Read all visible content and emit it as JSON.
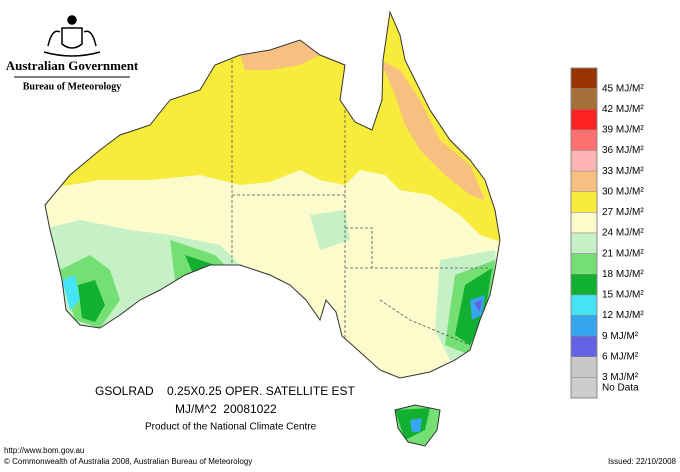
{
  "header": {
    "government": "Australian Government",
    "bureau": "Bureau of Meteorology"
  },
  "legend": [
    {
      "label": "45 MJ/M²",
      "color": "#993300"
    },
    {
      "label": "42 MJ/M²",
      "color": "#a6703a"
    },
    {
      "label": "39 MJ/M²",
      "color": "#ff2222"
    },
    {
      "label": "36 MJ/M²",
      "color": "#ff7070"
    },
    {
      "label": "33 MJ/M²",
      "color": "#ffb4b4"
    },
    {
      "label": "30 MJ/M²",
      "color": "#f8c080"
    },
    {
      "label": "27 MJ/M²",
      "color": "#f7ec3b"
    },
    {
      "label": "24 MJ/M²",
      "color": "#fbfbcc"
    },
    {
      "label": "21 MJ/M²",
      "color": "#c6f0c6"
    },
    {
      "label": "18 MJ/M²",
      "color": "#74e074"
    },
    {
      "label": "15 MJ/M²",
      "color": "#12b030"
    },
    {
      "label": "12 MJ/M²",
      "color": "#44e4f4"
    },
    {
      "label": "9 MJ/M²",
      "color": "#36a6f0"
    },
    {
      "label": "6 MJ/M²",
      "color": "#6262e2"
    },
    {
      "label": "3 MJ/M²",
      "color": "#c8c8c8"
    },
    {
      "label": "No Data",
      "color": "#cccccc"
    }
  ],
  "caption": {
    "line1": "GSOLRAD    0.25X0.25 OPER. SATELLITE EST",
    "line2": "MJ/M^2  20081022",
    "line3": "Product of the National Climate Centre"
  },
  "footer": {
    "url": "http://www.bom.gov.au",
    "copyright": "© Commonwealth of Australia 2008, Australian Bureau of Meteorology",
    "issued": "Issued: 22/10/2008"
  }
}
